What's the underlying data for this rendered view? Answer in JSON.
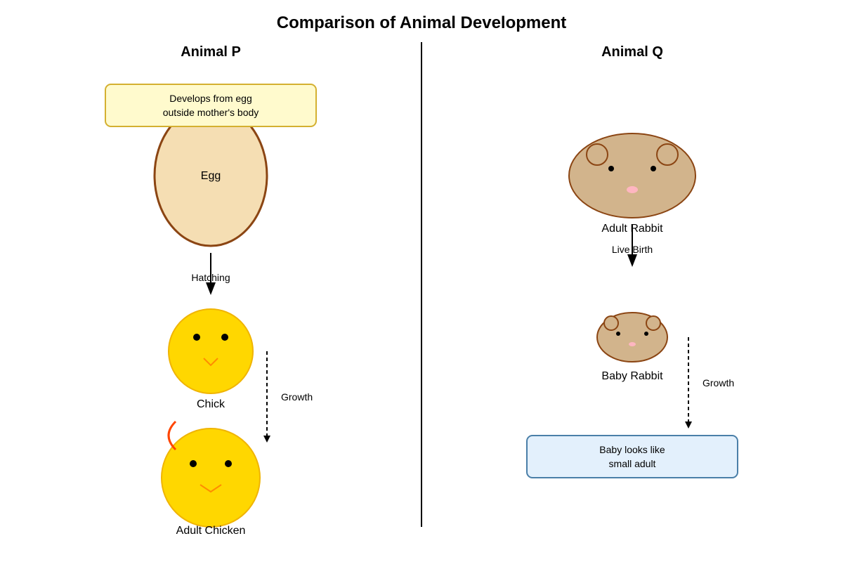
{
  "title": "Comparison of Animal Development",
  "animal_p": {
    "heading": "Animal P",
    "note_line1": "Develops from egg",
    "note_line2": "outside mother's body",
    "egg_label": "Egg",
    "hatching_label": "Hatching",
    "chick_label": "Chick",
    "growth_label": "Growth",
    "adult_label": "Adult Chicken"
  },
  "animal_q": {
    "heading": "Animal Q",
    "adult_label": "Adult Rabbit",
    "birth_label": "Live Birth",
    "baby_label": "Baby Rabbit",
    "growth_label": "Growth",
    "note_line1": "Baby looks like",
    "note_line2": "small adult"
  },
  "colors": {
    "egg_fill": "#f5deb3",
    "egg_stroke": "#8b4513",
    "chick_fill": "#ffd700",
    "chick_stroke": "#f0b400",
    "beak": "#ff8c00",
    "comb": "#ff4500",
    "rabbit_fill": "#d2b48c",
    "rabbit_stroke": "#8b4513",
    "nose": "#ffb6c1",
    "note_p_fill": "#fffacd",
    "note_p_stroke": "#d4b030",
    "note_q_fill": "#e3f0fc",
    "note_q_stroke": "#4a7fa8"
  }
}
